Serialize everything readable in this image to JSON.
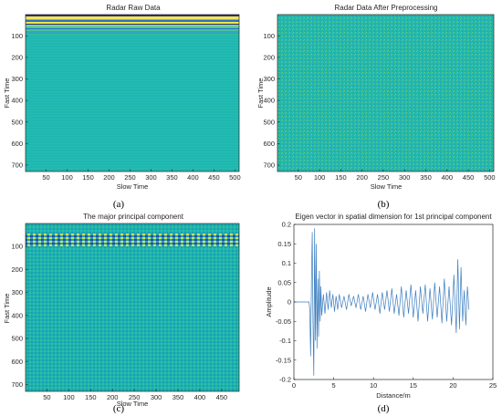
{
  "captions": [
    "(a)",
    "(b)",
    "(c)",
    "(d)"
  ],
  "colors": {
    "teal_base": "#1fb7b0",
    "band_yellow": "#f4e64a",
    "band_green": "#5fcf73",
    "band_blue": "#2e6fd1",
    "band_dark": "#2b2e8c",
    "line_series": "#3b7dbf",
    "axis": "#262626"
  },
  "chart_data": [
    {
      "id": "a",
      "type": "heatmap",
      "title": "Radar Raw Data",
      "xlabel": "Slow Time",
      "ylabel": "Fast Time",
      "xticks": [
        50,
        100,
        150,
        200,
        250,
        300,
        350,
        400,
        450,
        500
      ],
      "yticks": [
        100,
        200,
        300,
        400,
        500,
        600,
        700
      ],
      "xlim": [
        1,
        510
      ],
      "ylim": [
        1,
        730
      ],
      "y_reversed": true,
      "description_pattern": "strong horizontal bands at fast time 1-40, uniform teal elsewhere"
    },
    {
      "id": "b",
      "type": "heatmap",
      "title": "Radar Data After Preprocessing",
      "xlabel": "Slow Time",
      "ylabel": "Fast Time",
      "xticks": [
        50,
        100,
        150,
        200,
        250,
        300,
        350,
        400,
        450,
        500
      ],
      "yticks": [
        100,
        200,
        300,
        400,
        500,
        600,
        700
      ],
      "xlim": [
        1,
        510
      ],
      "ylim": [
        1,
        730
      ],
      "y_reversed": true
    },
    {
      "id": "c",
      "type": "heatmap",
      "title": "The major principal component",
      "xlabel": "Slow Time",
      "ylabel": "Fast Time",
      "xticks": [
        50,
        100,
        150,
        200,
        250,
        300,
        350,
        400,
        450
      ],
      "yticks": [
        100,
        200,
        300,
        400,
        500,
        600,
        700
      ],
      "xlim": [
        1,
        490
      ],
      "ylim": [
        1,
        730
      ],
      "y_reversed": true
    },
    {
      "id": "d",
      "type": "line",
      "title": "Eigen vector in spatial dimension for 1st principal component",
      "xlabel": "Distance/m",
      "ylabel": "Amplitude",
      "xticks": [
        0,
        5,
        10,
        15,
        20,
        25
      ],
      "yticks": [
        -0.2,
        -0.15,
        -0.1,
        -0.05,
        0,
        0.05,
        0.1,
        0.15,
        0.2
      ],
      "ytick_labels": [
        "-0.2",
        "-0.15",
        "-0.1",
        "-0.05",
        "0",
        "0.05",
        "0.1",
        "0.15",
        "0.2"
      ],
      "xlim": [
        0,
        25
      ],
      "ylim": [
        -0.2,
        0.2
      ],
      "series": [
        {
          "x": [
            0,
            1.0,
            1.5,
            1.9,
            2.0,
            2.1,
            2.2,
            2.3,
            2.4,
            2.5,
            2.6,
            2.7,
            2.8,
            2.9,
            3.0,
            3.1,
            3.2,
            3.3,
            3.4,
            3.5,
            3.7,
            3.9,
            4.1,
            4.3,
            4.5,
            4.7,
            4.9,
            5.1,
            5.3,
            5.5,
            5.7,
            6.0,
            6.3,
            6.6,
            6.9,
            7.2,
            7.5,
            7.8,
            8.1,
            8.4,
            8.7,
            9.0,
            9.3,
            9.6,
            9.9,
            10.2,
            10.5,
            10.8,
            11.1,
            11.4,
            11.7,
            12.0,
            12.3,
            12.6,
            12.9,
            13.2,
            13.5,
            13.8,
            14.1,
            14.4,
            14.7,
            15.0,
            15.3,
            15.6,
            15.9,
            16.2,
            16.5,
            16.8,
            17.1,
            17.4,
            17.7,
            18.0,
            18.3,
            18.6,
            18.9,
            19.2,
            19.5,
            19.8,
            20.1,
            20.4,
            20.6,
            20.8,
            21.0,
            21.2,
            21.4,
            21.6,
            21.8,
            22.0
          ],
          "y": [
            0,
            0,
            0,
            0,
            -0.02,
            -0.14,
            0.05,
            0.18,
            -0.05,
            -0.19,
            0.19,
            -0.1,
            0.15,
            -0.12,
            0.06,
            -0.09,
            0.08,
            -0.05,
            0.04,
            -0.035,
            0.02,
            -0.03,
            0.025,
            -0.02,
            0.03,
            -0.015,
            0.02,
            -0.025,
            0.015,
            -0.02,
            0.02,
            -0.015,
            0.015,
            -0.02,
            0.02,
            -0.01,
            0.015,
            -0.015,
            0.02,
            -0.02,
            0.015,
            -0.025,
            0.02,
            -0.015,
            0.025,
            -0.02,
            0.02,
            -0.03,
            0.025,
            -0.02,
            0.03,
            -0.025,
            0.035,
            -0.03,
            0.02,
            -0.035,
            0.04,
            -0.04,
            0.03,
            -0.03,
            0.045,
            -0.04,
            0.03,
            -0.05,
            0.04,
            -0.03,
            0.045,
            -0.05,
            0.035,
            -0.045,
            0.05,
            -0.04,
            0.04,
            -0.055,
            0.06,
            -0.05,
            0.04,
            -0.06,
            0.07,
            -0.08,
            0.11,
            -0.07,
            0.09,
            -0.05,
            0.03,
            -0.06,
            0.04,
            -0.02
          ]
        }
      ]
    }
  ]
}
